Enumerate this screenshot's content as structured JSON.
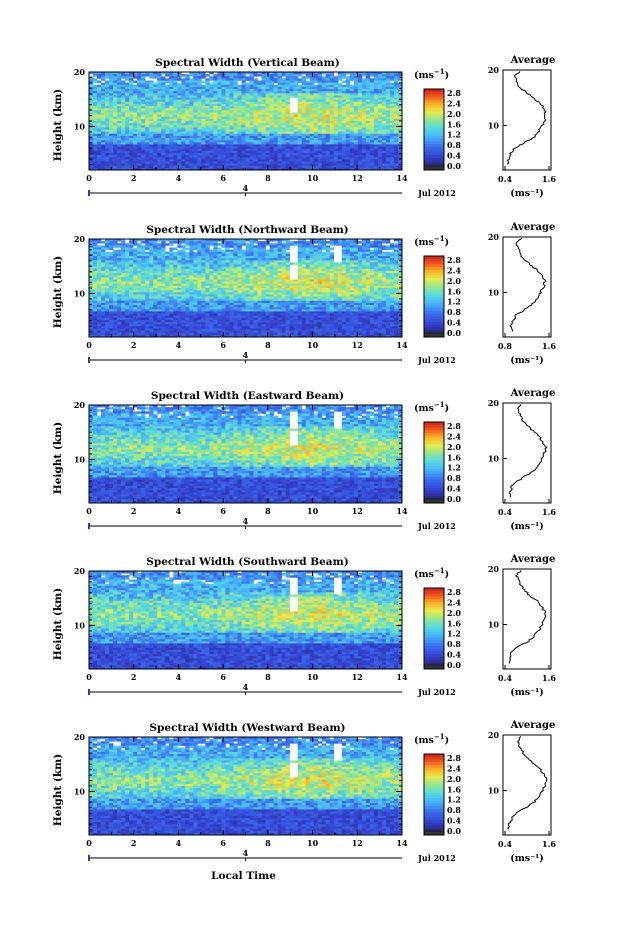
{
  "date_label": "Jul 2012",
  "day_marker": "4",
  "xlabel": "Local Time",
  "ylabel": "Height (km)",
  "unit_label": "(ms",
  "unit_exp": "−1",
  "unit_close": ")",
  "avg_xlabel": "(ms⁻¹)",
  "chart_data": [
    {
      "type": "heatmap",
      "title": "Spectral Width (Vertical Beam)",
      "avg_title": "Average",
      "x_ticks": [
        "0",
        "2",
        "4",
        "6",
        "8",
        "10",
        "12",
        "14"
      ],
      "y_ticks": [
        "20",
        "10"
      ],
      "xlim": [
        0,
        14
      ],
      "ylim": [
        2,
        20
      ],
      "colorbar_ticks": [
        "2.8",
        "2.4",
        "2.0",
        "1.6",
        "1.2",
        "0.8",
        "0.4",
        "0.0"
      ],
      "avg_xticks": [
        "0.4",
        "1.6"
      ],
      "avg_profile": {
        "height_km": [
          3,
          4,
          5,
          6,
          7,
          8,
          9,
          10,
          11,
          12,
          13,
          14,
          15,
          16,
          17,
          18,
          19,
          20
        ],
        "width_ms": [
          0.45,
          0.5,
          0.55,
          0.7,
          1.05,
          1.35,
          1.5,
          1.6,
          1.7,
          1.72,
          1.68,
          1.55,
          1.3,
          1.05,
          0.85,
          0.75,
          0.7,
          0.9
        ]
      }
    },
    {
      "type": "heatmap",
      "title": "Spectral Width (Northward Beam)",
      "avg_title": "Average",
      "x_ticks": [
        "0",
        "2",
        "4",
        "6",
        "8",
        "10",
        "12",
        "14"
      ],
      "y_ticks": [
        "20",
        "10"
      ],
      "xlim": [
        0,
        14
      ],
      "ylim": [
        2,
        20
      ],
      "colorbar_ticks": [
        "2.8",
        "2.4",
        "2.0",
        "1.6",
        "1.2",
        "0.8",
        "0.4",
        "0.0"
      ],
      "avg_xticks": [
        "0.8",
        "1.6"
      ],
      "avg_profile": {
        "height_km": [
          3,
          4,
          5,
          6,
          7,
          8,
          9,
          10,
          11,
          12,
          13,
          14,
          15,
          16,
          17,
          18,
          19,
          20
        ],
        "width_ms": [
          0.6,
          0.55,
          0.65,
          0.75,
          1.05,
          1.3,
          1.45,
          1.55,
          1.65,
          1.7,
          1.6,
          1.45,
          1.2,
          1.0,
          0.85,
          0.8,
          0.75,
          0.95
        ]
      }
    },
    {
      "type": "heatmap",
      "title": "Spectral Width (Eastward Beam)",
      "avg_title": "Average",
      "x_ticks": [
        "0",
        "2",
        "4",
        "6",
        "8",
        "10",
        "12",
        "14"
      ],
      "y_ticks": [
        "20",
        "10"
      ],
      "xlim": [
        0,
        14
      ],
      "ylim": [
        2,
        20
      ],
      "colorbar_ticks": [
        "2.8",
        "2.4",
        "2.0",
        "1.6",
        "1.2",
        "0.8",
        "0.4",
        "0.0"
      ],
      "avg_xticks": [
        "0.4",
        "1.6"
      ],
      "avg_profile": {
        "height_km": [
          3,
          4,
          5,
          6,
          7,
          8,
          9,
          10,
          11,
          12,
          13,
          14,
          15,
          16,
          17,
          18,
          19,
          20
        ],
        "width_ms": [
          0.5,
          0.55,
          0.6,
          0.8,
          1.1,
          1.35,
          1.5,
          1.6,
          1.68,
          1.72,
          1.62,
          1.5,
          1.3,
          1.1,
          0.95,
          0.85,
          0.8,
          0.9
        ]
      }
    },
    {
      "type": "heatmap",
      "title": "Spectral Width (Southward Beam)",
      "avg_title": "Average",
      "x_ticks": [
        "0",
        "2",
        "4",
        "6",
        "8",
        "10",
        "12",
        "14"
      ],
      "y_ticks": [
        "20",
        "10"
      ],
      "xlim": [
        0,
        14
      ],
      "ylim": [
        2,
        20
      ],
      "colorbar_ticks": [
        "2.8",
        "2.4",
        "2.0",
        "1.6",
        "1.2",
        "0.8",
        "0.4",
        "0.0"
      ],
      "avg_xticks": [
        "0.4",
        "1.6"
      ],
      "avg_profile": {
        "height_km": [
          3,
          4,
          5,
          6,
          7,
          8,
          9,
          10,
          11,
          12,
          13,
          14,
          15,
          16,
          17,
          18,
          19,
          20
        ],
        "width_ms": [
          0.55,
          0.5,
          0.6,
          0.8,
          1.15,
          1.35,
          1.5,
          1.6,
          1.7,
          1.72,
          1.62,
          1.5,
          1.25,
          1.05,
          0.9,
          0.8,
          0.75,
          0.95
        ]
      }
    },
    {
      "type": "heatmap",
      "title": "Spectral Width (Westward Beam)",
      "avg_title": "Average",
      "x_ticks": [
        "0",
        "2",
        "4",
        "6",
        "8",
        "10",
        "12",
        "14"
      ],
      "y_ticks": [
        "20",
        "10"
      ],
      "xlim": [
        0,
        14
      ],
      "ylim": [
        2,
        20
      ],
      "colorbar_ticks": [
        "2.8",
        "2.4",
        "2.0",
        "1.6",
        "1.2",
        "0.8",
        "0.4",
        "0.0"
      ],
      "avg_xticks": [
        "0.4",
        "1.6"
      ],
      "avg_profile": {
        "height_km": [
          3,
          4,
          5,
          6,
          7,
          8,
          9,
          10,
          11,
          12,
          13,
          14,
          15,
          16,
          17,
          18,
          19,
          20
        ],
        "width_ms": [
          0.5,
          0.5,
          0.6,
          0.75,
          1.1,
          1.35,
          1.5,
          1.62,
          1.7,
          1.74,
          1.65,
          1.5,
          1.3,
          1.1,
          0.95,
          0.85,
          0.8,
          0.9
        ]
      }
    }
  ]
}
